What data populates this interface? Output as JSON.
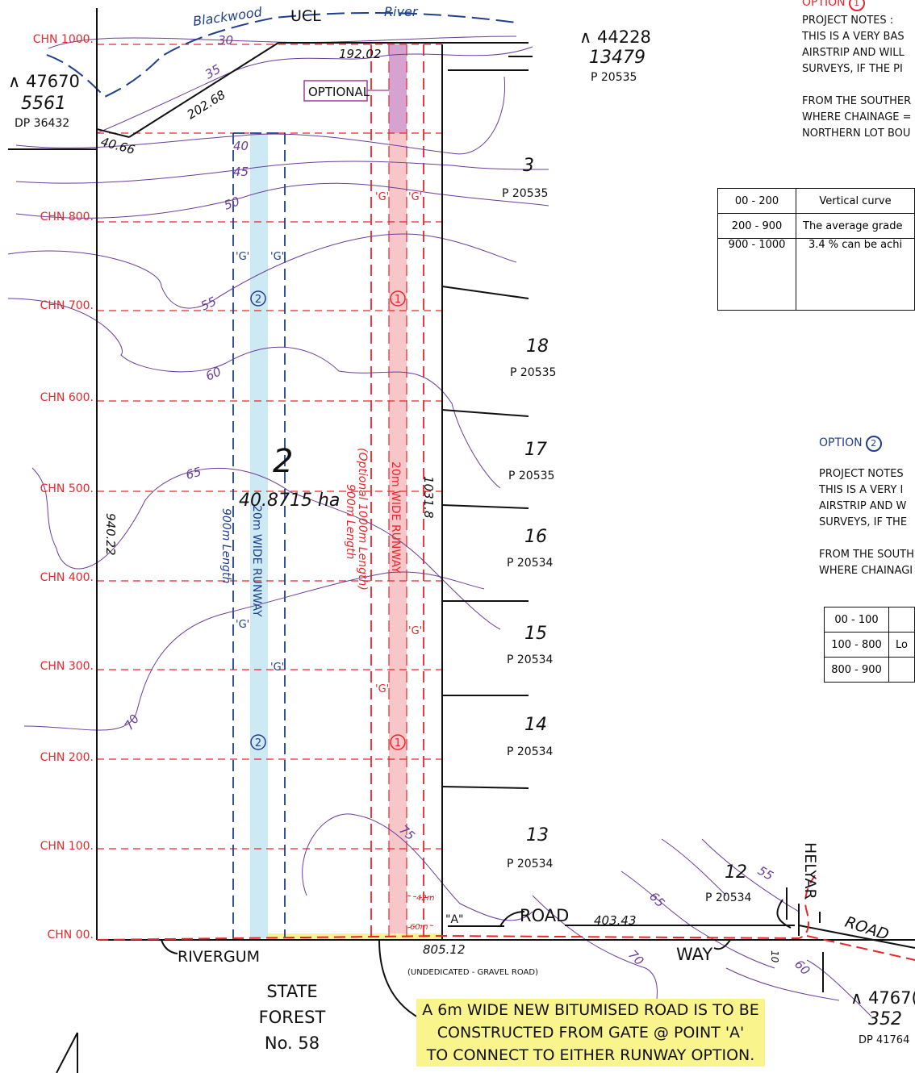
{
  "chainages": [
    "CHN  1000.",
    "CHN  800.",
    "CHN  700.",
    "CHN  600.",
    "CHN  500.",
    "CHN  400.",
    "CHN  300.",
    "CHN  200.",
    "CHN  100.",
    "CHN  00."
  ],
  "contours": [
    "30",
    "35",
    "40",
    "45",
    "50",
    "55",
    "60",
    "65",
    "70",
    "75",
    "55",
    "65",
    "70",
    "60"
  ],
  "features": {
    "blackwood": "Blackwood",
    "ucl": "UCL",
    "river": "River",
    "optional": "OPTIONAL"
  },
  "lots": {
    "lot2_number": "2",
    "lot2_area": "40.8715 ha",
    "west_ref": "∧ 47670",
    "west_num": "5561",
    "west_plan": "DP 36432",
    "ne_ref": "∧ 44228",
    "ne_num": "13479",
    "ne_plan": "P 20535",
    "se_ref": "∧ 4767(",
    "se_num": "352",
    "se_plan": "DP 41764",
    "parcels": [
      {
        "num": "3",
        "plan": "P 20535"
      },
      {
        "num": "18",
        "plan": "P 20535"
      },
      {
        "num": "17",
        "plan": "P 20535"
      },
      {
        "num": "16",
        "plan": "P 20534"
      },
      {
        "num": "15",
        "plan": "P 20534"
      },
      {
        "num": "14",
        "plan": "P 20534"
      },
      {
        "num": "13",
        "plan": "P 20534"
      },
      {
        "num": "12",
        "plan": "P 20534"
      }
    ]
  },
  "dimensions": {
    "top": "192.02",
    "diag": "202.68",
    "nw": "40.66",
    "west": "940.22",
    "east": "1031.8",
    "road": "403.43",
    "south": "805.12",
    "small": "10",
    "d42": "42m",
    "d60": "60m"
  },
  "runways": {
    "opt1_label": "20m  WIDE RUNWAY",
    "opt1_len": "(Optional 1000m Length)",
    "opt1_len2": "900m Length",
    "opt2_label": "20m  WIDE  RUNWAY",
    "opt2_len": "900m Length",
    "g": "'G'",
    "marker1": "1",
    "marker2": "2"
  },
  "roads": {
    "road1": "ROAD",
    "way": "WAY",
    "rivergum": "RIVERGUM",
    "helyar": "HELYAR",
    "road2": "ROAD",
    "point_a": "\"A\"",
    "undedicated": "(UNDEDICATED - GRAVEL ROAD)",
    "state_forest": [
      "STATE",
      "FOREST",
      "No. 58"
    ]
  },
  "callout": [
    "A 6m WIDE NEW BITUMISED ROAD IS TO BE",
    "CONSTRUCTED FROM GATE @ POINT 'A'",
    "TO CONNECT TO EITHER RUNWAY OPTION."
  ],
  "option1": {
    "title": "OPTION",
    "marker": "1",
    "notes": [
      "PROJECT NOTES :",
      "THIS IS A VERY BAS",
      "AIRSTRIP AND WILL",
      "SURVEYS, IF THE PI",
      "",
      "FROM THE SOUTHER",
      "WHERE CHAINAGE =",
      "NORTHERN LOT BOU"
    ],
    "table": [
      [
        "00 - 200",
        "Vertical curve"
      ],
      [
        "200 - 900",
        "The average grade"
      ],
      [
        "900 - 1000",
        "3.4 % can be achi"
      ]
    ]
  },
  "option2": {
    "title": "OPTION",
    "marker": "2",
    "notes": [
      "PROJECT NOTES",
      "THIS IS A VERY I",
      "AIRSTRIP AND W",
      "SURVEYS, IF THE",
      "",
      "FROM THE SOUTH",
      "WHERE CHAINAGI"
    ],
    "table": [
      [
        "00 - 100",
        ""
      ],
      [
        "100 - 800",
        "Lo"
      ],
      [
        "800 - 900",
        ""
      ]
    ]
  },
  "colors": {
    "red": "#e8262c",
    "blue": "#1f3f8c",
    "purple": "#6a3d9a",
    "runway1": "#f7c6c9",
    "runway2": "#cde9f3",
    "highlight": "#faf48c"
  }
}
